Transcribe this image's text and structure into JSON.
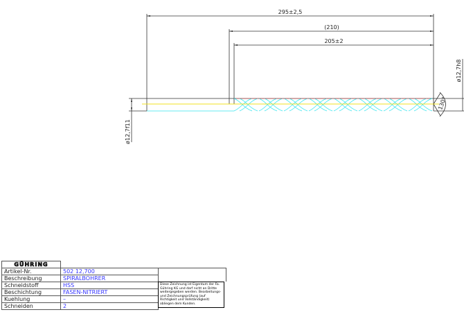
{
  "drawing": {
    "dim_total_length": "295±2,5",
    "dim_reference_length": "(210)",
    "dim_flute_length": "205±2",
    "dim_shank_diameter": "ø12,7f11",
    "dim_cutting_diameter": "ø12,7h8",
    "dim_point_angle": "130°",
    "colors": {
      "outline": "#333333",
      "flutes": "#33e5ee",
      "centerline": "#f0e020",
      "tip_marks": "#e04040"
    }
  },
  "title_block": {
    "logo": "GÜHRING",
    "rows": [
      {
        "label": "Artikel-Nr.",
        "value": "502 12,700"
      },
      {
        "label": "Beschreibung",
        "value": "SPIRALBOHRER"
      },
      {
        "label": "Schneidstoff",
        "value": "HSS"
      },
      {
        "label": "Beschichtung",
        "value": "FASEN-NITRIERT"
      },
      {
        "label": "Kuehlung",
        "value": "–"
      },
      {
        "label": "Schneiden",
        "value": "2"
      }
    ],
    "note": "Diese Zeichnung ist Eigentum der Fa. Gühring KG und darf nicht an Dritte weitergegeben werden. Bearbeitungs- und Zeichnungsprüfung (auf Richtigkeit und Vollständigkeit) obliegen dem Kunden."
  }
}
